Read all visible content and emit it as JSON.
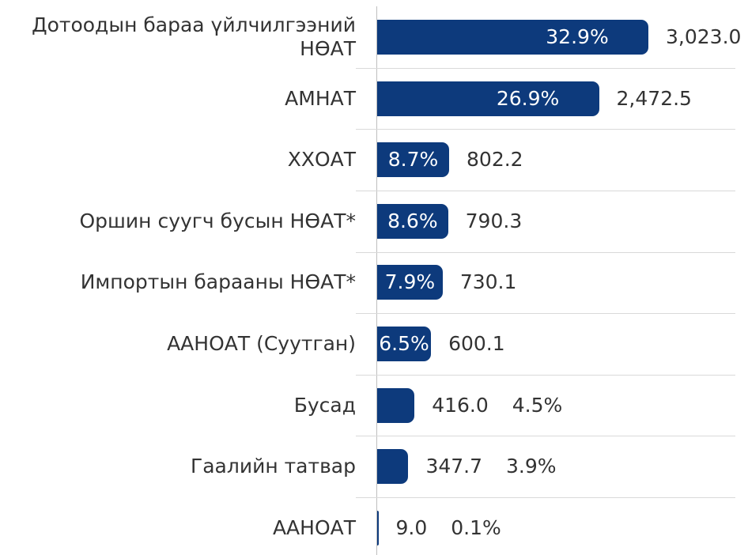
{
  "chart_data": {
    "type": "bar",
    "orientation": "horizontal",
    "color": "#0d3a7c",
    "categories": [
      "Дотоодын бараа үйлчилгээний НӨАТ",
      "АМНАТ",
      "ХХОАТ",
      "Оршин суугч бусын НӨАТ*",
      "Импортын барааны НӨАТ*",
      "ААНОАТ (Суутган)",
      "Бусад",
      "Гаалийн татвар",
      "ААНОАТ"
    ],
    "values": [
      3023.0,
      2472.5,
      802.2,
      790.3,
      730.1,
      600.1,
      416.0,
      347.7,
      9.0
    ],
    "value_labels": [
      "3,023.0",
      "2,472.5",
      "802.2",
      "790.3",
      "730.1",
      "600.1",
      "416.0",
      "347.7",
      "9.0"
    ],
    "shares": [
      32.9,
      26.9,
      8.7,
      8.6,
      7.9,
      6.5,
      4.5,
      3.9,
      0.1
    ],
    "share_labels": [
      "32.9%",
      "26.9%",
      "8.7%",
      "8.6%",
      "7.9%",
      "6.5%",
      "4.5%",
      "3.9%",
      "0.1%"
    ]
  }
}
